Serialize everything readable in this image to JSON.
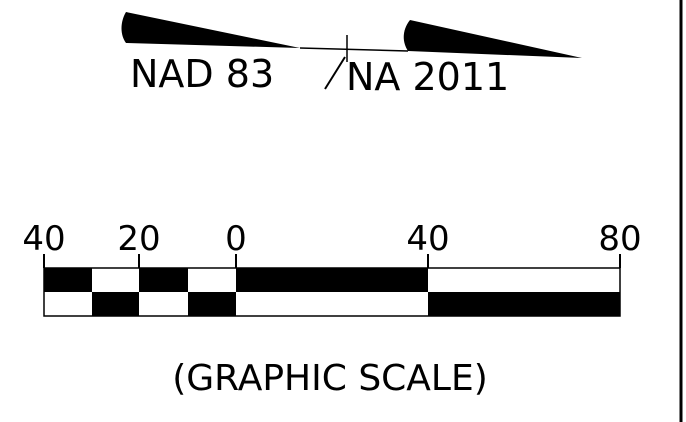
{
  "datum": {
    "left_text": "NAD 83",
    "right_text": "NA 2011"
  },
  "scale": {
    "tick_labels": [
      "40",
      "20",
      "0",
      "40",
      "80"
    ],
    "caption": "(GRAPHIC SCALE)"
  },
  "colors": {
    "ink": "#000000",
    "paper": "#ffffff"
  }
}
